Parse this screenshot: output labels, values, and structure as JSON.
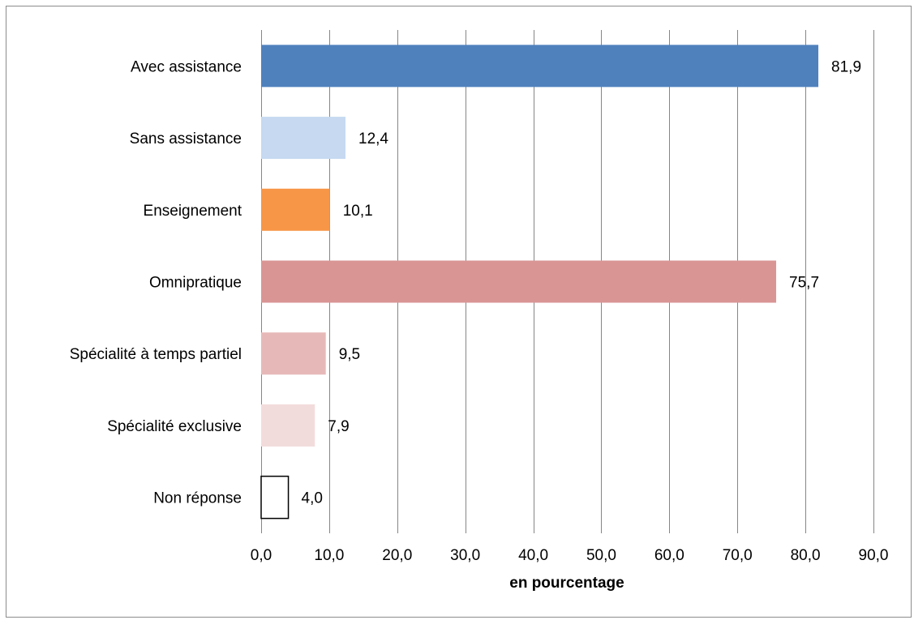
{
  "chart_data": {
    "type": "bar",
    "orientation": "horizontal",
    "categories": [
      "Avec assistance",
      "Sans assistance",
      "Enseignement",
      "Omnipratique",
      "Spécialité à temps partiel",
      "Spécialité exclusive",
      "Non réponse"
    ],
    "values": [
      81.9,
      12.4,
      10.1,
      75.7,
      9.5,
      7.9,
      4.0
    ],
    "value_labels": [
      "81,9",
      "12,4",
      "10,1",
      "75,7",
      "9,5",
      "7,9",
      "4,0"
    ],
    "bar_colors": [
      "#4f81bd",
      "#c6d9f1",
      "#f79646",
      "#d99594",
      "#e6b9b8",
      "#f2dcdb",
      "#ffffff"
    ],
    "bar_outline": "#000000",
    "xlabel": "en pourcentage",
    "xlim": [
      0,
      90
    ],
    "x_ticks": [
      "0,0",
      "10,0",
      "20,0",
      "30,0",
      "40,0",
      "50,0",
      "60,0",
      "70,0",
      "80,0",
      "90,0"
    ],
    "x_tick_values": [
      0,
      10,
      20,
      30,
      40,
      50,
      60,
      70,
      80,
      90
    ],
    "grid": "vertical",
    "grid_color": "#868686",
    "legend": "none"
  }
}
